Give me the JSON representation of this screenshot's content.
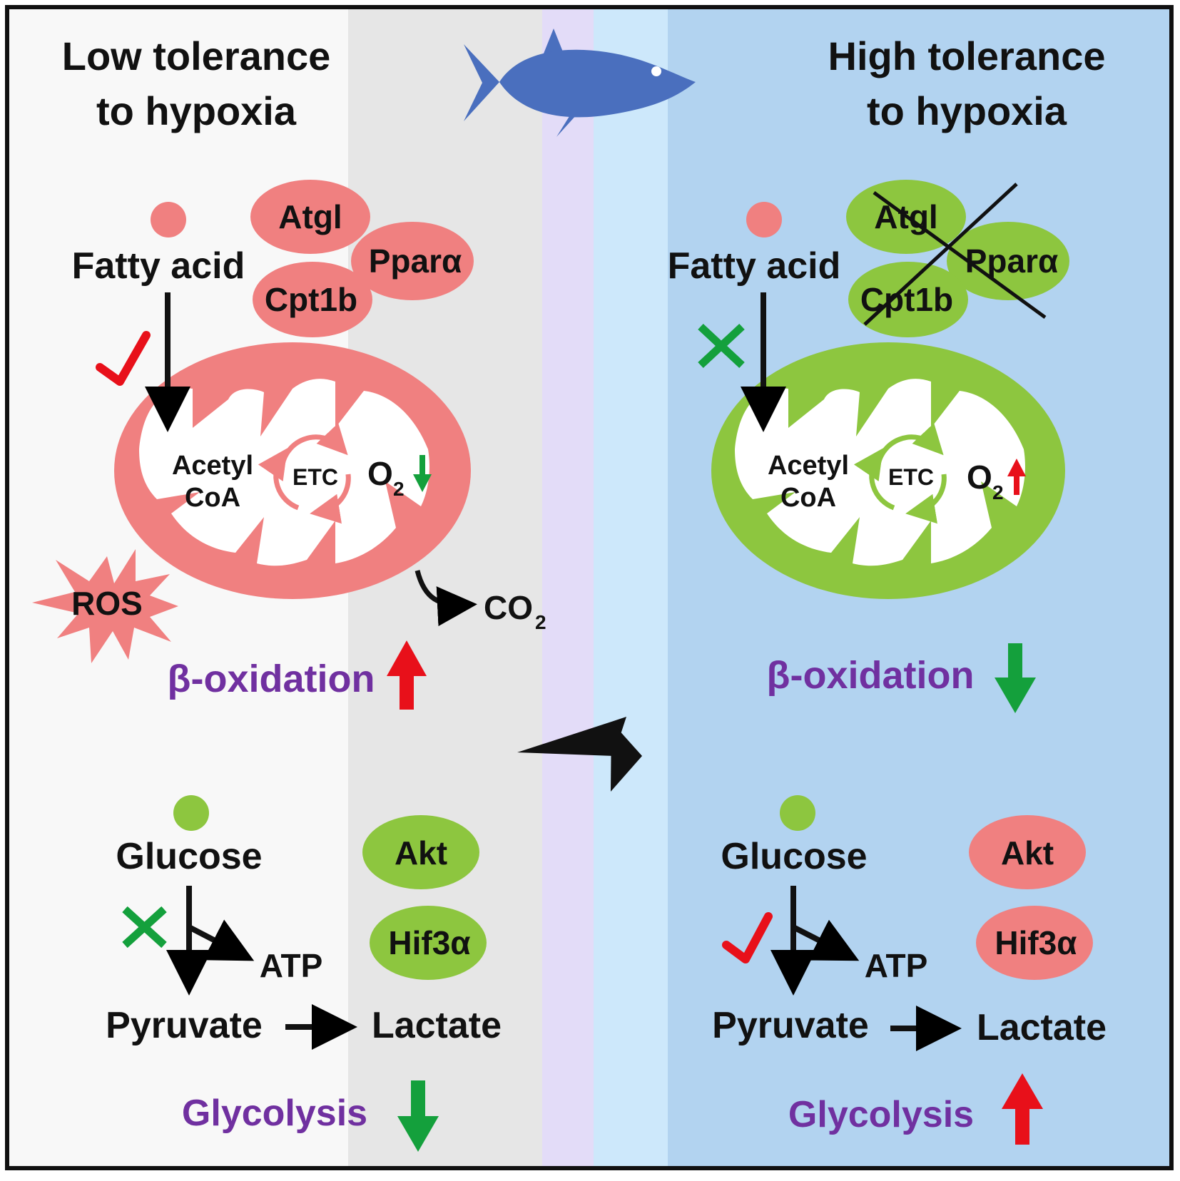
{
  "left": {
    "title_line1": "Low tolerance",
    "title_line2": "to hypoxia",
    "fatty_acid": "Fatty acid",
    "genes": {
      "atgl": "Atgl",
      "ppara": "Pparα",
      "cpt1b": "Cpt1b"
    },
    "acetyl_line1": "Acetyl",
    "acetyl_line2": "CoA",
    "etc": "ETC",
    "o2": "O",
    "o2_sub": "2",
    "ros": "ROS",
    "co2": "CO",
    "co2_sub": "2",
    "beta_oxidation": "β-oxidation",
    "glucose": "Glucose",
    "akt": "Akt",
    "hif3a": "Hif3α",
    "atp": "ATP",
    "pyruvate": "Pyruvate",
    "lactate": "Lactate",
    "glycolysis": "Glycolysis"
  },
  "right": {
    "title_line1": "High tolerance",
    "title_line2": "to hypoxia",
    "fatty_acid": "Fatty acid",
    "genes": {
      "atgl": "Atgl",
      "ppara": "Pparα",
      "cpt1b": "Cpt1b"
    },
    "acetyl_line1": "Acetyl",
    "acetyl_line2": "CoA",
    "etc": "ETC",
    "o2": "O",
    "o2_sub": "2",
    "beta_oxidation": "β-oxidation",
    "glucose": "Glucose",
    "akt": "Akt",
    "hif3a": "Hif3α",
    "atp": "ATP",
    "pyruvate": "Pyruvate",
    "lactate": "Lactate",
    "glycolysis": "Glycolysis"
  },
  "colors": {
    "red_fill": "#f08080",
    "green_fill": "#8dc63f",
    "purple_text": "#7030a0",
    "up_arrow": "#e8101a",
    "down_arrow": "#14a03c",
    "fish": "#4a6fbe",
    "bg_left_light": "#f8f8f8",
    "bg_left_grey": "#e6e6e6",
    "bg_lavender": "#e3dcf8",
    "bg_light_blue": "#cde8fb",
    "bg_blue": "#b2d3f0"
  },
  "icons": {
    "fish": "fish-icon",
    "check": "checkmark-icon",
    "cross": "cross-icon",
    "up": "up-arrow-icon",
    "down": "down-arrow-icon"
  }
}
